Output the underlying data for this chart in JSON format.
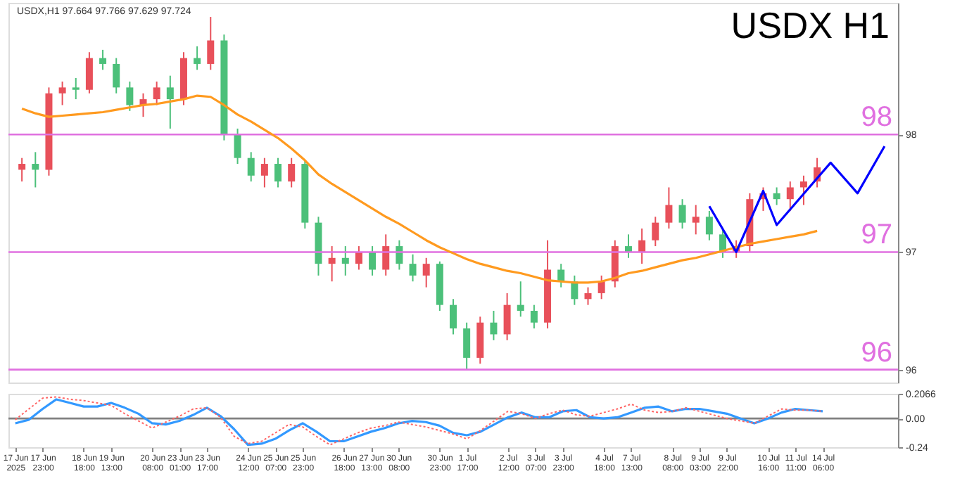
{
  "chart_data": [
    {
      "type": "candlestick",
      "title": "USDX H1",
      "annotations": [
        "USDX,H1 97.664 97.766 97.629 97.724"
      ],
      "categories": [
        null,
        null,
        null,
        null,
        null,
        null,
        null,
        null,
        null,
        null,
        null,
        null,
        null,
        null,
        null,
        null,
        null,
        null,
        null,
        null,
        null,
        null,
        null,
        null,
        null,
        null,
        null,
        null,
        null,
        null,
        null,
        null,
        null,
        null,
        null,
        null,
        null,
        null,
        null,
        null,
        null,
        null,
        null,
        null,
        null,
        null,
        null,
        null,
        null,
        null,
        null,
        null,
        null,
        null,
        null,
        null,
        null,
        null,
        null,
        null,
        null,
        null,
        null,
        null,
        null
      ],
      "ohlc": [
        [
          97.7,
          97.8,
          97.6,
          97.75
        ],
        [
          97.75,
          97.85,
          97.55,
          97.7
        ],
        [
          97.7,
          98.4,
          97.65,
          98.35
        ],
        [
          98.35,
          98.45,
          98.25,
          98.4
        ],
        [
          98.4,
          98.48,
          98.3,
          98.38
        ],
        [
          98.38,
          98.7,
          98.35,
          98.65
        ],
        [
          98.65,
          98.72,
          98.55,
          98.6
        ],
        [
          98.6,
          98.65,
          98.35,
          98.4
        ],
        [
          98.4,
          98.45,
          98.2,
          98.25
        ],
        [
          98.25,
          98.35,
          98.15,
          98.3
        ],
        [
          98.3,
          98.45,
          98.25,
          98.4
        ],
        [
          98.4,
          98.5,
          98.05,
          98.3
        ],
        [
          98.3,
          98.7,
          98.25,
          98.65
        ],
        [
          98.65,
          98.75,
          98.55,
          98.6
        ],
        [
          98.6,
          99.0,
          98.55,
          98.8
        ],
        [
          98.8,
          98.85,
          97.95,
          98.0
        ],
        [
          98.0,
          98.05,
          97.75,
          97.8
        ],
        [
          97.8,
          97.85,
          97.6,
          97.65
        ],
        [
          97.65,
          97.8,
          97.55,
          97.75
        ],
        [
          97.75,
          97.8,
          97.55,
          97.6
        ],
        [
          97.6,
          97.8,
          97.55,
          97.75
        ],
        [
          97.75,
          97.78,
          97.2,
          97.25
        ],
        [
          97.25,
          97.3,
          96.8,
          96.9
        ],
        [
          96.9,
          97.05,
          96.75,
          96.95
        ],
        [
          96.95,
          97.05,
          96.8,
          96.9
        ],
        [
          96.9,
          97.05,
          96.85,
          97.0
        ],
        [
          97.0,
          97.05,
          96.8,
          96.85
        ],
        [
          96.85,
          97.15,
          96.8,
          97.05
        ],
        [
          97.05,
          97.1,
          96.85,
          96.9
        ],
        [
          96.9,
          96.98,
          96.75,
          96.8
        ],
        [
          96.8,
          96.95,
          96.7,
          96.9
        ],
        [
          96.9,
          96.92,
          96.5,
          96.55
        ],
        [
          96.55,
          96.6,
          96.3,
          96.35
        ],
        [
          96.35,
          96.4,
          96.0,
          96.1
        ],
        [
          96.1,
          96.45,
          96.05,
          96.4
        ],
        [
          96.4,
          96.5,
          96.25,
          96.3
        ],
        [
          96.3,
          96.65,
          96.25,
          96.55
        ],
        [
          96.55,
          96.75,
          96.45,
          96.5
        ],
        [
          96.5,
          96.55,
          96.35,
          96.4
        ],
        [
          96.4,
          97.1,
          96.35,
          96.85
        ],
        [
          96.85,
          96.9,
          96.7,
          96.75
        ],
        [
          96.75,
          96.8,
          96.55,
          96.6
        ],
        [
          96.6,
          96.7,
          96.55,
          96.65
        ],
        [
          96.65,
          96.8,
          96.6,
          96.75
        ],
        [
          96.75,
          97.1,
          96.7,
          97.05
        ],
        [
          97.05,
          97.15,
          96.95,
          97.0
        ],
        [
          97.0,
          97.2,
          96.9,
          97.1
        ],
        [
          97.1,
          97.3,
          97.05,
          97.25
        ],
        [
          97.25,
          97.55,
          97.2,
          97.4
        ],
        [
          97.4,
          97.45,
          97.2,
          97.25
        ],
        [
          97.25,
          97.4,
          97.15,
          97.3
        ],
        [
          97.3,
          97.35,
          97.1,
          97.15
        ],
        [
          97.15,
          97.2,
          96.95,
          97.0
        ],
        [
          97.0,
          97.1,
          96.95,
          97.05
        ],
        [
          97.05,
          97.5,
          97.0,
          97.45
        ],
        [
          97.45,
          97.55,
          97.35,
          97.5
        ],
        [
          97.5,
          97.55,
          97.4,
          97.45
        ],
        [
          97.45,
          97.6,
          97.35,
          97.55
        ],
        [
          97.55,
          97.65,
          97.4,
          97.6
        ],
        [
          97.6,
          97.8,
          97.55,
          97.72
        ],
        null,
        null,
        null,
        null,
        null
      ],
      "series": [
        {
          "type": "line",
          "color": "#ff9a1f",
          "values": [
            98.22,
            98.18,
            98.15,
            98.16,
            98.17,
            98.18,
            98.19,
            98.21,
            98.23,
            98.25,
            98.26,
            98.28,
            98.3,
            98.33,
            98.32,
            98.25,
            98.17,
            98.11,
            98.04,
            97.97,
            97.88,
            97.78,
            97.66,
            97.58,
            97.51,
            97.44,
            97.37,
            97.3,
            97.24,
            97.17,
            97.1,
            97.04,
            96.99,
            96.94,
            96.9,
            96.87,
            96.84,
            96.82,
            96.79,
            96.76,
            96.75,
            96.74,
            96.74,
            96.75,
            96.78,
            96.82,
            96.84,
            96.87,
            96.9,
            96.93,
            96.95,
            96.98,
            97.01,
            97.04,
            97.07,
            97.09,
            97.11,
            97.13,
            97.15,
            97.18,
            null,
            null,
            null,
            null,
            null
          ]
        },
        {
          "type": "line",
          "color": "#0000ff",
          "values": [
            null,
            null,
            null,
            null,
            null,
            null,
            null,
            null,
            null,
            null,
            null,
            null,
            null,
            null,
            null,
            null,
            null,
            null,
            null,
            null,
            null,
            null,
            null,
            null,
            null,
            null,
            null,
            null,
            null,
            null,
            null,
            null,
            null,
            null,
            null,
            null,
            null,
            null,
            null,
            null,
            null,
            null,
            null,
            null,
            null,
            null,
            null,
            null,
            null,
            null,
            null,
            97.39,
            null,
            97.0,
            null,
            97.52,
            97.23,
            null,
            null,
            null,
            97.76,
            null,
            97.5,
            null,
            97.9
          ]
        }
      ],
      "ref_lines": [
        {
          "axis": "y",
          "value": 98,
          "label": "98",
          "color": "#e070e0"
        },
        {
          "axis": "y",
          "value": 97,
          "label": "97",
          "color": "#e070e0"
        },
        {
          "axis": "y",
          "value": 96,
          "label": "96",
          "color": "#e070e0"
        }
      ],
      "ylim": [
        95.89,
        99.12
      ],
      "yticks": [
        96,
        97,
        98
      ],
      "tick_labels": "y",
      "grid": false
    },
    {
      "type": "line",
      "ylim": [
        -0.24,
        0.2066
      ],
      "yticks": [
        {
          "value": 0.2066,
          "label": "0.2066"
        },
        {
          "value": 0,
          "label": "0.00"
        },
        {
          "value": -0.24,
          "label": "-0.24"
        }
      ],
      "categories": [
        "17 Jun 2025",
        null,
        "17 Jun 23:00",
        null,
        null,
        "18 Jun 18:00",
        null,
        "19 Jun 13:00",
        null,
        null,
        "20 Jun 08:00",
        null,
        "23 Jun 01:00",
        null,
        "23 Jun 17:00",
        null,
        null,
        "24 Jun 12:00",
        null,
        "25 Jun 07:00",
        null,
        "25 Jun 23:00",
        null,
        null,
        "26 Jun 18:00",
        null,
        "27 Jun 13:00",
        null,
        "30 Jun 08:00",
        null,
        null,
        "30 Jun 23:00",
        null,
        "1 Jul 17:00",
        null,
        null,
        "2 Jul 12:00",
        null,
        "3 Jul 07:00",
        null,
        "3 Jul 23:00",
        null,
        null,
        "4 Jul 18:00",
        null,
        "7 Jul 13:00",
        null,
        null,
        "8 Jul 08:00",
        null,
        "9 Jul 03:00",
        null,
        "9 Jul 22:00",
        null,
        null,
        "10 Jul 16:00",
        null,
        "11 Jul 11:00",
        null,
        "14 Jul 06:00",
        null,
        null,
        null,
        null,
        null
      ],
      "series": [
        {
          "color": "#3399ff",
          "values": [
            -0.04,
            -0.01,
            0.08,
            0.16,
            0.13,
            0.1,
            0.1,
            0.13,
            0.09,
            0.04,
            -0.04,
            -0.05,
            -0.02,
            0.03,
            0.09,
            0.02,
            -0.09,
            -0.22,
            -0.21,
            -0.17,
            -0.1,
            -0.04,
            -0.11,
            -0.19,
            -0.19,
            -0.15,
            -0.11,
            -0.08,
            -0.04,
            -0.02,
            -0.03,
            -0.06,
            -0.12,
            -0.14,
            -0.11,
            -0.05,
            0.01,
            0.05,
            0.01,
            0.01,
            0.06,
            0.07,
            0.01,
            0,
            0.01,
            0.05,
            0.09,
            0.1,
            0.06,
            0.08,
            0.08,
            0.06,
            0.04,
            0,
            -0.04,
            0,
            0.05,
            0.08,
            0.07,
            0.06,
            null,
            null,
            null,
            null,
            null
          ]
        },
        {
          "color": "#ff6666",
          "line_style": "dotted",
          "values": [
            -0.01,
            0.08,
            0.17,
            0.18,
            0.16,
            0.15,
            0.13,
            0.11,
            0.04,
            -0.02,
            -0.08,
            -0.03,
            0.02,
            0.08,
            0.09,
            0.01,
            -0.15,
            -0.21,
            -0.19,
            -0.12,
            -0.05,
            -0.07,
            -0.15,
            -0.22,
            -0.17,
            -0.12,
            -0.08,
            -0.06,
            -0.03,
            -0.05,
            -0.07,
            -0.1,
            -0.13,
            -0.17,
            -0.1,
            -0.02,
            0.06,
            0.04,
            0,
            0.04,
            0.07,
            0.03,
            0.02,
            0.05,
            0.08,
            0.12,
            0.07,
            0.05,
            0.06,
            0.09,
            0.06,
            0.03,
            0,
            -0.02,
            -0.04,
            0.02,
            0.08,
            0.07,
            0.07,
            0.06,
            null,
            null,
            null,
            null,
            null
          ]
        }
      ],
      "ref_lines": [
        {
          "axis": "y",
          "value": 0,
          "color": "#808080"
        }
      ],
      "grid": false
    }
  ]
}
